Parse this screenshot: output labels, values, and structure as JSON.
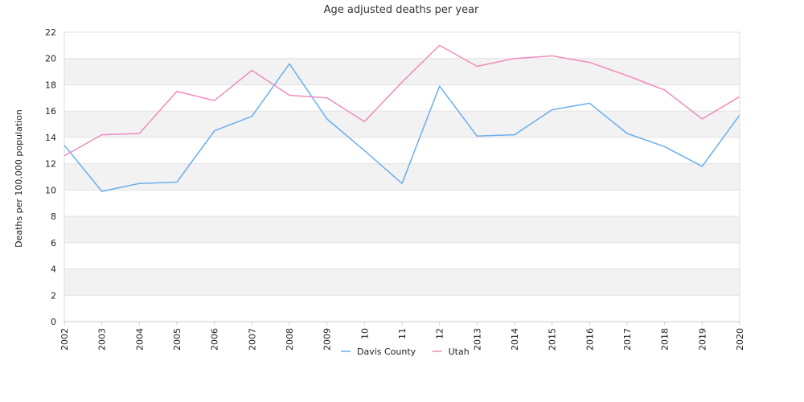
{
  "chart_data": {
    "type": "line",
    "title": "Age adjusted deaths per year",
    "xlabel": "",
    "ylabel": "Deaths per 100,000 population",
    "x": [
      "2002",
      "2003",
      "2004",
      "2005",
      "2006",
      "2007",
      "2008",
      "2009",
      "10",
      "11",
      "12",
      "2013",
      "2014",
      "2015",
      "2016",
      "2017",
      "2018",
      "2019",
      "2020"
    ],
    "ylim": [
      0,
      22
    ],
    "yticks": [
      0,
      2,
      4,
      6,
      8,
      10,
      12,
      14,
      16,
      18,
      20,
      22
    ],
    "grid": "horizontal alternating bands",
    "legend_position": "bottom-center",
    "series": [
      {
        "name": "Davis County",
        "color": "#6aaef0",
        "values": [
          13.4,
          9.9,
          10.5,
          10.6,
          14.5,
          15.6,
          19.6,
          15.4,
          13.0,
          10.5,
          17.9,
          14.1,
          14.2,
          16.1,
          16.6,
          14.3,
          13.3,
          11.8,
          15.7
        ]
      },
      {
        "name": "Utah",
        "color": "#f08cbe",
        "values": [
          12.6,
          14.2,
          14.3,
          17.5,
          16.8,
          19.1,
          17.2,
          17.0,
          15.2,
          18.2,
          21.0,
          19.4,
          20.0,
          20.2,
          19.7,
          18.7,
          17.6,
          15.4,
          17.1
        ]
      }
    ]
  }
}
